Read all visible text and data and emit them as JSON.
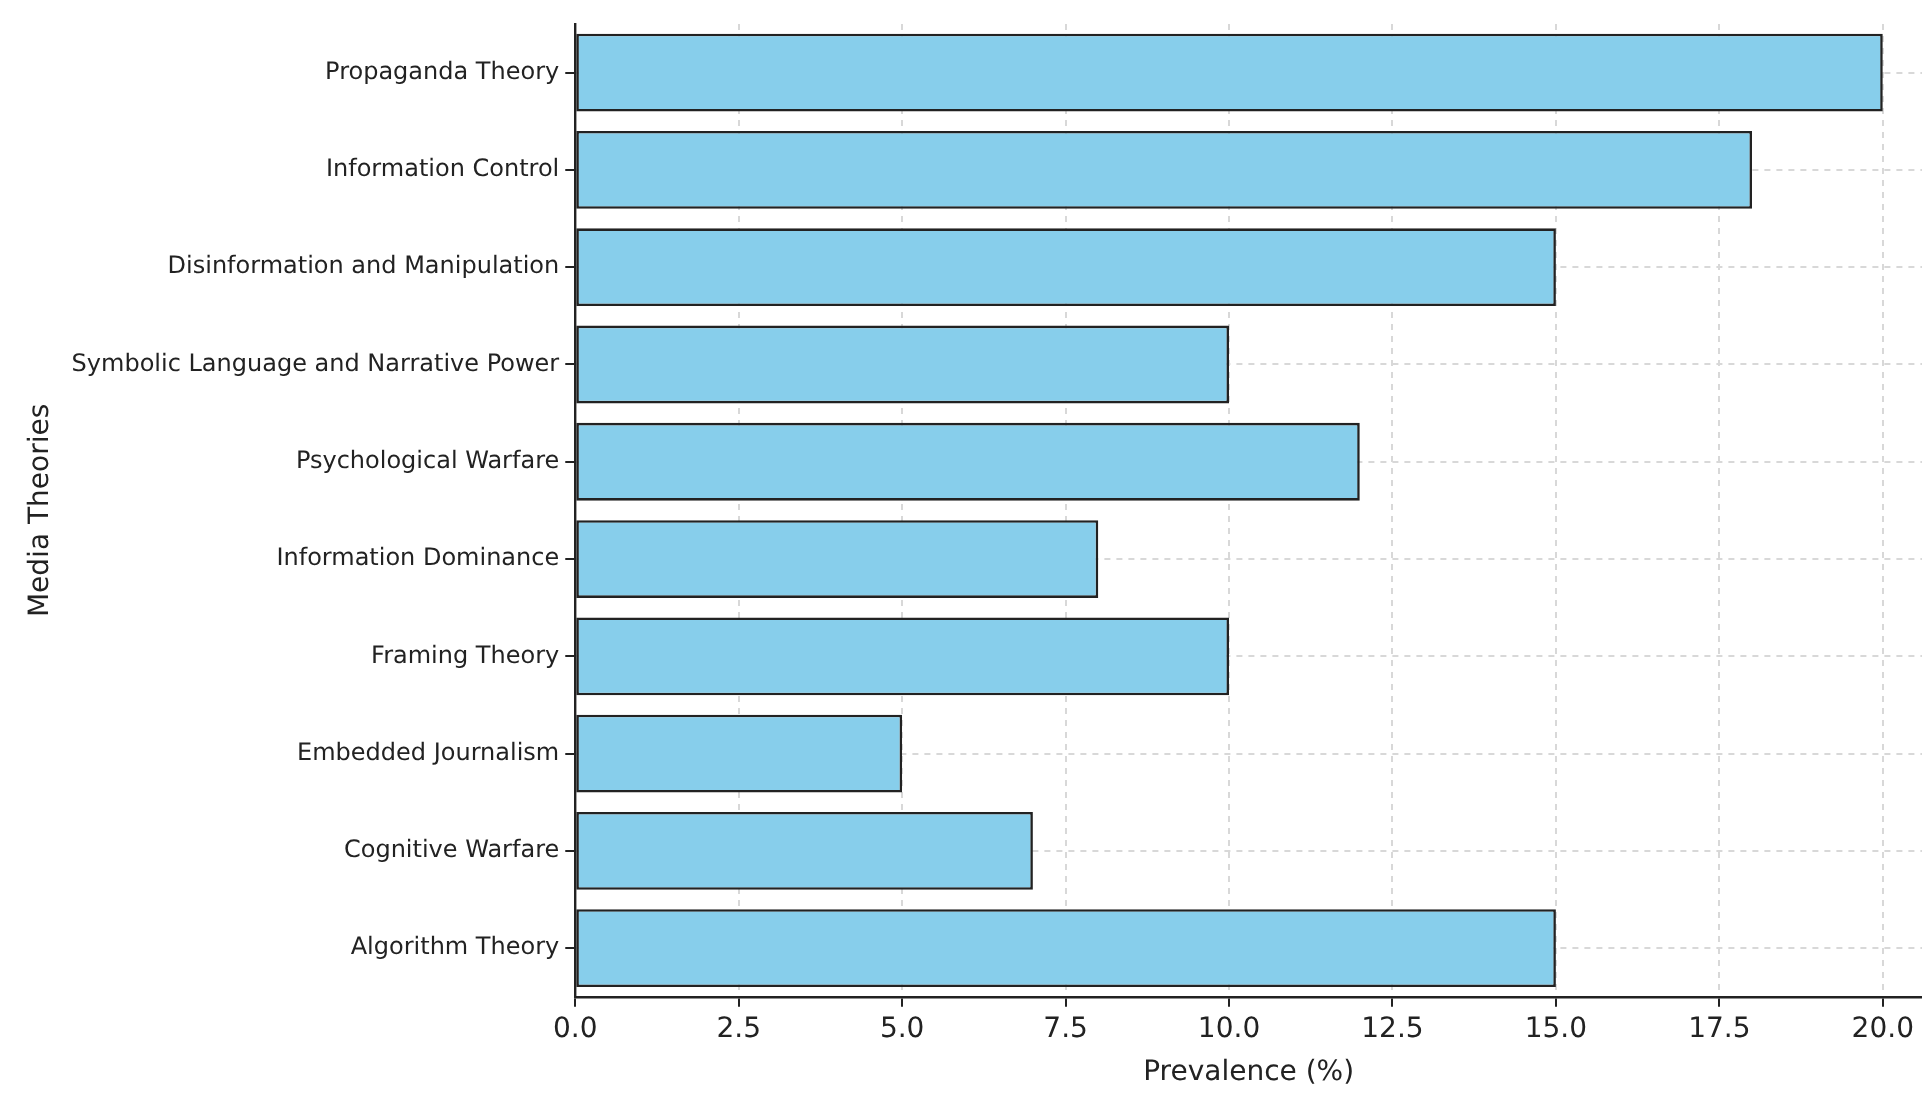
{
  "chart_data": {
    "type": "bar",
    "orientation": "horizontal",
    "categories": [
      "Propaganda Theory",
      "Information Control",
      "Disinformation and Manipulation",
      "Symbolic Language and Narrative Power",
      "Psychological Warfare",
      "Information Dominance",
      "Framing Theory",
      "Embedded Journalism",
      "Cognitive Warfare",
      "Algorithm Theory"
    ],
    "values": [
      20,
      18,
      15,
      10,
      12,
      8,
      10,
      5,
      7,
      15
    ],
    "color": "#87ceeb",
    "xlabel": "Prevalence (%)",
    "ylabel": "Media Theories",
    "xlim": [
      0,
      20.6
    ],
    "xticks": [
      {
        "value": 0,
        "label": "0.0"
      },
      {
        "value": 2.5,
        "label": "2.5"
      },
      {
        "value": 5,
        "label": "5.0"
      },
      {
        "value": 7.5,
        "label": "7.5"
      },
      {
        "value": 10,
        "label": "10.0"
      },
      {
        "value": 12.5,
        "label": "12.5"
      },
      {
        "value": 15,
        "label": "15.0"
      },
      {
        "value": 17.5,
        "label": "17.5"
      },
      {
        "value": 20,
        "label": "20.0"
      }
    ],
    "grid": true,
    "legend": false
  }
}
